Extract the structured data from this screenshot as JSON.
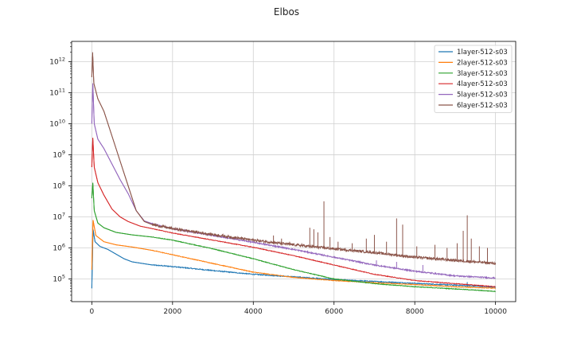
{
  "chart_data": {
    "type": "line",
    "title": "Elbos",
    "xlabel": "",
    "ylabel": "",
    "xlim": [
      -500,
      10500
    ],
    "ylim_log10": [
      4.27,
      12.65
    ],
    "yscale": "log",
    "grid": true,
    "legend_placement": "top-right",
    "x_ticks": [
      0,
      2000,
      4000,
      6000,
      8000,
      10000
    ],
    "x_tick_labels": [
      "0",
      "2000",
      "4000",
      "6000",
      "8000",
      "10000"
    ],
    "y_ticks_log10": [
      5,
      6,
      7,
      8,
      9,
      10,
      11,
      12
    ],
    "y_tick_labels": [
      "10",
      "10",
      "10",
      "10",
      "10",
      "10",
      "10",
      "10"
    ],
    "y_tick_exponents": [
      "5",
      "6",
      "7",
      "8",
      "9",
      "10",
      "11",
      "12"
    ],
    "series": [
      {
        "name": "1layer-512-s03",
        "color": "#1f77b4",
        "noise": 0.015,
        "points": [
          [
            0,
            4.7
          ],
          [
            30,
            6.6
          ],
          [
            80,
            6.2
          ],
          [
            200,
            6.05
          ],
          [
            400,
            5.95
          ],
          [
            600,
            5.8
          ],
          [
            800,
            5.65
          ],
          [
            1000,
            5.55
          ],
          [
            1500,
            5.45
          ],
          [
            2000,
            5.4
          ],
          [
            3000,
            5.27
          ],
          [
            4000,
            5.15
          ],
          [
            5000,
            5.07
          ],
          [
            6000,
            4.98
          ],
          [
            7000,
            4.92
          ],
          [
            8000,
            4.86
          ],
          [
            9000,
            4.8
          ],
          [
            10000,
            4.74
          ]
        ]
      },
      {
        "name": "2layer-512-s03",
        "color": "#ff7f0e",
        "noise": 0.01,
        "points": [
          [
            0,
            5.3
          ],
          [
            30,
            6.9
          ],
          [
            100,
            6.4
          ],
          [
            300,
            6.2
          ],
          [
            600,
            6.1
          ],
          [
            1000,
            6.03
          ],
          [
            1500,
            5.92
          ],
          [
            2000,
            5.78
          ],
          [
            3000,
            5.5
          ],
          [
            4000,
            5.22
          ],
          [
            5000,
            5.05
          ],
          [
            6000,
            4.95
          ],
          [
            7000,
            4.88
          ],
          [
            8000,
            4.82
          ],
          [
            9000,
            4.75
          ],
          [
            10000,
            4.7
          ]
        ]
      },
      {
        "name": "3layer-512-s03",
        "color": "#2ca02c",
        "noise": 0.01,
        "points": [
          [
            0,
            7.6
          ],
          [
            25,
            8.1
          ],
          [
            60,
            7.2
          ],
          [
            150,
            6.8
          ],
          [
            300,
            6.65
          ],
          [
            600,
            6.5
          ],
          [
            1000,
            6.42
          ],
          [
            1500,
            6.35
          ],
          [
            2000,
            6.25
          ],
          [
            3000,
            5.97
          ],
          [
            4000,
            5.65
          ],
          [
            5000,
            5.3
          ],
          [
            6000,
            5.0
          ],
          [
            7000,
            4.85
          ],
          [
            8000,
            4.75
          ],
          [
            9000,
            4.68
          ],
          [
            10000,
            4.6
          ]
        ]
      },
      {
        "name": "4layer-512-s03",
        "color": "#d62728",
        "noise": 0.01,
        "points": [
          [
            0,
            8.6
          ],
          [
            25,
            9.55
          ],
          [
            60,
            8.6
          ],
          [
            150,
            8.1
          ],
          [
            300,
            7.7
          ],
          [
            500,
            7.25
          ],
          [
            700,
            7.0
          ],
          [
            900,
            6.85
          ],
          [
            1200,
            6.7
          ],
          [
            1500,
            6.62
          ],
          [
            2000,
            6.48
          ],
          [
            3000,
            6.25
          ],
          [
            4000,
            6.02
          ],
          [
            5000,
            5.75
          ],
          [
            6000,
            5.45
          ],
          [
            7000,
            5.15
          ],
          [
            8000,
            4.95
          ],
          [
            9000,
            4.85
          ],
          [
            10000,
            4.75
          ]
        ]
      },
      {
        "name": "5layer-512-s03",
        "color": "#9467bd",
        "noise": 0.02,
        "points": [
          [
            0,
            10.0
          ],
          [
            25,
            11.3
          ],
          [
            60,
            10.0
          ],
          [
            150,
            9.5
          ],
          [
            300,
            9.2
          ],
          [
            500,
            8.7
          ],
          [
            700,
            8.2
          ],
          [
            900,
            7.75
          ],
          [
            1100,
            7.2
          ],
          [
            1300,
            6.87
          ],
          [
            1500,
            6.78
          ],
          [
            2000,
            6.62
          ],
          [
            3000,
            6.4
          ],
          [
            4000,
            6.18
          ],
          [
            5000,
            5.95
          ],
          [
            6000,
            5.7
          ],
          [
            7000,
            5.45
          ],
          [
            8000,
            5.25
          ],
          [
            9000,
            5.1
          ],
          [
            10000,
            5.03
          ]
        ]
      },
      {
        "name": "6layer-512-s03",
        "color": "#8c564b",
        "noise": 0.04,
        "points": [
          [
            0,
            11.5
          ],
          [
            20,
            12.3
          ],
          [
            50,
            11.3
          ],
          [
            150,
            10.8
          ],
          [
            300,
            10.4
          ],
          [
            500,
            9.6
          ],
          [
            700,
            8.8
          ],
          [
            900,
            8.0
          ],
          [
            1100,
            7.2
          ],
          [
            1300,
            6.85
          ],
          [
            1500,
            6.75
          ],
          [
            2000,
            6.62
          ],
          [
            3000,
            6.43
          ],
          [
            4000,
            6.25
          ],
          [
            5000,
            6.1
          ],
          [
            6000,
            5.97
          ],
          [
            7000,
            5.85
          ],
          [
            8000,
            5.7
          ],
          [
            9000,
            5.6
          ],
          [
            10000,
            5.5
          ]
        ]
      }
    ],
    "spikes": {
      "6layer-512-s03": [
        [
          4100,
          6.3
        ],
        [
          4300,
          6.25
        ],
        [
          4500,
          6.4
        ],
        [
          4700,
          6.3
        ],
        [
          4900,
          6.2
        ],
        [
          5200,
          6.15
        ],
        [
          5400,
          6.65
        ],
        [
          5500,
          6.6
        ],
        [
          5600,
          6.5
        ],
        [
          5750,
          7.5
        ],
        [
          5900,
          6.35
        ],
        [
          6100,
          6.2
        ],
        [
          6450,
          6.15
        ],
        [
          6800,
          6.3
        ],
        [
          7000,
          6.42
        ],
        [
          7300,
          6.2
        ],
        [
          7550,
          6.95
        ],
        [
          7700,
          6.75
        ],
        [
          8050,
          6.05
        ],
        [
          8500,
          6.1
        ],
        [
          8800,
          6.0
        ],
        [
          9050,
          6.15
        ],
        [
          9200,
          6.55
        ],
        [
          9300,
          7.05
        ],
        [
          9400,
          6.3
        ],
        [
          9600,
          6.05
        ],
        [
          9800,
          6.0
        ]
      ],
      "5layer-512-s03": [
        [
          7050,
          5.6
        ],
        [
          7550,
          5.55
        ],
        [
          8200,
          5.45
        ]
      ],
      "1layer-512-s03": [
        [
          9300,
          4.9
        ]
      ]
    }
  }
}
